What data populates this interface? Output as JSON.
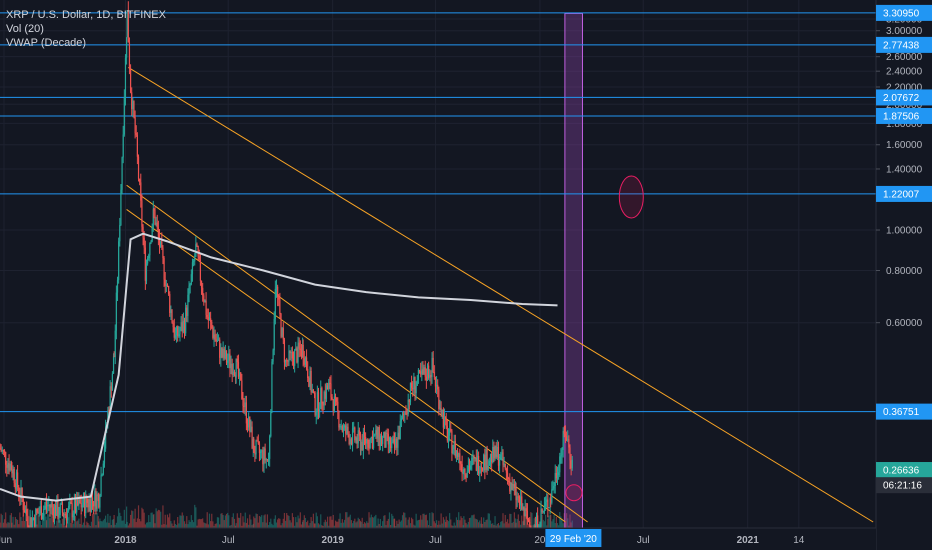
{
  "legend": {
    "symbol": "XRP / U.S. Dollar, 1D, BITFINEX",
    "volume": "Vol (20)",
    "vwap": "VWAP (Decade)"
  },
  "colors": {
    "background": "#131722",
    "grid": "#1e2230",
    "hline": "#2196f3",
    "trendline": "#f7a325",
    "vwap": "#d1d4dc",
    "up_candle": "#26a69a",
    "down_candle": "#ef5350",
    "highlight_box": "#8e44ad",
    "circle": "#e91e63",
    "axis_text": "#b2b5be",
    "date_tag": "#2196f3"
  },
  "chart_data": {
    "type": "line",
    "title": "XRP / U.S. Dollar, 1D, BITFINEX",
    "y_scale": "log",
    "ylim": [
      0.2,
      3.4
    ],
    "y_ticks": [
      {
        "value": 3.2,
        "label": "3.20000"
      },
      {
        "value": 3.0,
        "label": "3.00000"
      },
      {
        "value": 2.6,
        "label": "2.60000"
      },
      {
        "value": 2.4,
        "label": "2.40000"
      },
      {
        "value": 2.2,
        "label": "2.20000"
      },
      {
        "value": 2.0,
        "label": "2.00000"
      },
      {
        "value": 1.8,
        "label": "1.80000"
      },
      {
        "value": 1.6,
        "label": "1.60000"
      },
      {
        "value": 1.4,
        "label": "1.40000"
      },
      {
        "value": 1.0,
        "label": "1.00000"
      },
      {
        "value": 0.8,
        "label": "0.80000"
      },
      {
        "value": 0.6,
        "label": "0.60000"
      }
    ],
    "x_range": [
      "2017-05-25",
      "2021-08-15"
    ],
    "x_ticks": [
      {
        "date": "2017-06-01",
        "label": "Jun"
      },
      {
        "date": "2018-01-01",
        "label": "2018"
      },
      {
        "date": "2018-07-01",
        "label": "Jul"
      },
      {
        "date": "2019-01-01",
        "label": "2019"
      },
      {
        "date": "2019-07-01",
        "label": "Jul"
      },
      {
        "date": "2020-01-01",
        "label": "20"
      },
      {
        "date": "2020-07-01",
        "label": "Jul"
      },
      {
        "date": "2021-01-01",
        "label": "2021"
      },
      {
        "date": "2021-04-01",
        "label": "14"
      }
    ],
    "horizontal_levels": [
      {
        "value": 3.3095,
        "label": "3.30950"
      },
      {
        "value": 2.77438,
        "label": "2.77438"
      },
      {
        "value": 2.07672,
        "label": "2.07672"
      },
      {
        "value": 1.87506,
        "label": "1.87506"
      },
      {
        "value": 1.22007,
        "label": "1.22007"
      },
      {
        "value": 0.36751,
        "label": "0.36751"
      }
    ],
    "extra_tags": [
      {
        "value": 0.26636,
        "label": "0.26636",
        "color": "#26a69a"
      },
      {
        "value": 0.245,
        "label": "06:21:16",
        "color": "#2a2e39"
      }
    ],
    "date_tag": {
      "date": "2020-02-29",
      "label": "29 Feb '20"
    },
    "price_series": {
      "name": "XRP / U.S. Dollar",
      "points": [
        [
          "2017-05-25",
          0.3
        ],
        [
          "2017-06-15",
          0.27
        ],
        [
          "2017-07-15",
          0.2
        ],
        [
          "2017-08-15",
          0.22
        ],
        [
          "2017-09-15",
          0.21
        ],
        [
          "2017-10-15",
          0.22
        ],
        [
          "2017-11-15",
          0.23
        ],
        [
          "2017-12-12",
          0.5
        ],
        [
          "2017-12-20",
          0.9
        ],
        [
          "2017-12-28",
          1.8
        ],
        [
          "2018-01-04",
          3.3
        ],
        [
          "2018-01-10",
          2.2
        ],
        [
          "2018-01-20",
          1.6
        ],
        [
          "2018-02-05",
          0.8
        ],
        [
          "2018-02-20",
          1.1
        ],
        [
          "2018-03-10",
          0.8
        ],
        [
          "2018-03-30",
          0.55
        ],
        [
          "2018-04-15",
          0.6
        ],
        [
          "2018-05-05",
          0.9
        ],
        [
          "2018-05-25",
          0.62
        ],
        [
          "2018-06-20",
          0.5
        ],
        [
          "2018-07-15",
          0.47
        ],
        [
          "2018-08-15",
          0.3
        ],
        [
          "2018-09-10",
          0.28
        ],
        [
          "2018-09-22",
          0.75
        ],
        [
          "2018-10-10",
          0.48
        ],
        [
          "2018-11-10",
          0.52
        ],
        [
          "2018-12-01",
          0.38
        ],
        [
          "2018-12-25",
          0.42
        ],
        [
          "2019-01-20",
          0.33
        ],
        [
          "2019-02-20",
          0.31
        ],
        [
          "2019-03-20",
          0.32
        ],
        [
          "2019-04-20",
          0.3
        ],
        [
          "2019-05-20",
          0.42
        ],
        [
          "2019-06-25",
          0.47
        ],
        [
          "2019-07-20",
          0.33
        ],
        [
          "2019-08-20",
          0.27
        ],
        [
          "2019-09-20",
          0.28
        ],
        [
          "2019-10-20",
          0.29
        ],
        [
          "2019-11-20",
          0.23
        ],
        [
          "2019-12-20",
          0.19
        ],
        [
          "2020-01-20",
          0.23
        ],
        [
          "2020-02-15",
          0.33
        ],
        [
          "2020-02-29",
          0.26636
        ]
      ]
    },
    "vwap_series": {
      "points": [
        [
          "2017-05-25",
          0.24
        ],
        [
          "2017-07-01",
          0.23
        ],
        [
          "2017-09-01",
          0.225
        ],
        [
          "2017-11-01",
          0.23
        ],
        [
          "2017-12-20",
          0.45
        ],
        [
          "2018-01-10",
          0.95
        ],
        [
          "2018-02-01",
          0.98
        ],
        [
          "2018-03-15",
          0.94
        ],
        [
          "2018-06-01",
          0.86
        ],
        [
          "2018-09-01",
          0.8
        ],
        [
          "2018-12-01",
          0.74
        ],
        [
          "2019-03-01",
          0.71
        ],
        [
          "2019-06-01",
          0.69
        ],
        [
          "2019-09-01",
          0.68
        ],
        [
          "2019-12-01",
          0.665
        ],
        [
          "2020-02-01",
          0.66
        ]
      ]
    },
    "trendlines": [
      {
        "from": [
          "2018-01-06",
          2.45
        ],
        "to": [
          "2021-08-10",
          0.2
        ]
      },
      {
        "from": [
          "2018-01-03",
          1.28
        ],
        "to": [
          "2020-03-25",
          0.2
        ]
      },
      {
        "from": [
          "2018-01-03",
          1.12
        ],
        "to": [
          "2020-02-15",
          0.2
        ]
      }
    ],
    "highlight_range": {
      "from": "2020-02-14",
      "to": "2020-03-16",
      "top": 3.3
    }
  }
}
